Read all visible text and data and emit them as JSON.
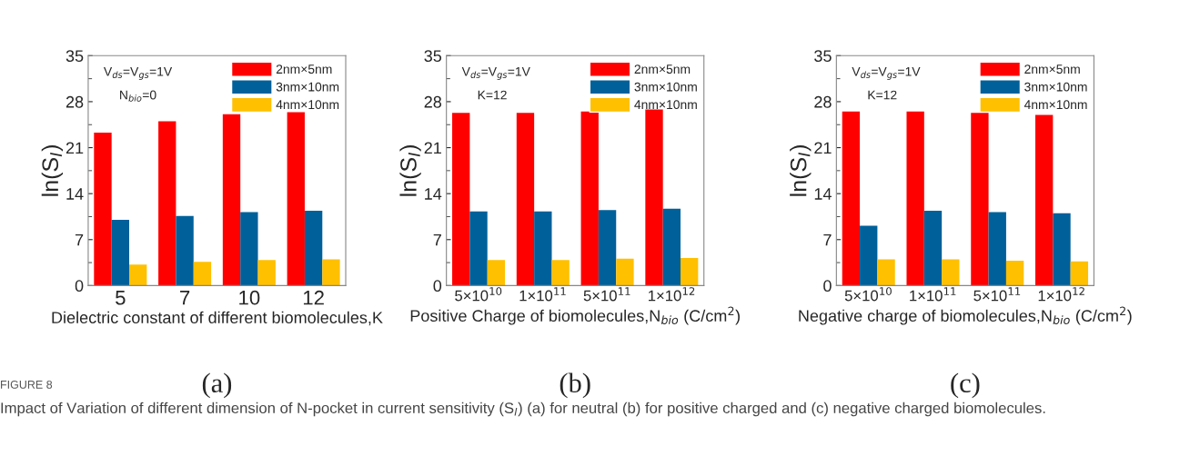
{
  "chart_data": [
    {
      "type": "bar",
      "categories": [
        "5",
        "7",
        "10",
        "12"
      ],
      "xlabel": "Dielectric constant of different biomolecules,K",
      "ylabel": "ln(S$_{I}$)",
      "ylim": [
        0,
        35
      ],
      "yticks": [
        0,
        7,
        14,
        21,
        28,
        35
      ],
      "legend": "top right",
      "grid": false,
      "series": [
        {
          "name": "2nm×5nm",
          "color": "#ff0000",
          "values": [
            23.3,
            25.0,
            26.1,
            26.4
          ]
        },
        {
          "name": "3nm×10nm",
          "color": "#00609a",
          "values": [
            10.0,
            10.6,
            11.2,
            11.4
          ]
        },
        {
          "name": "4nm×10nm",
          "color": "#ffc000",
          "values": [
            3.2,
            3.6,
            3.9,
            4.0
          ]
        }
      ],
      "annotations": [
        "V$_{ds}$=V$_{gs}$=1V",
        "N$_{bio}$=0",
        "(a)",
        "FIGURE 8",
        "Impact of Variation of different dimension of N-pocket in current sensitivity (S$_{I}$) (a) for neutral (b) for positive charged and (c) negative charged biomolecules."
      ]
    },
    {
      "type": "bar",
      "categories": [
        "5×10$^{10}$",
        "1×10$^{11}$",
        "5×10$^{11}$",
        "1×10$^{12}$"
      ],
      "xlabel": "Positive Charge of biomolecules,N$_{bio}$ (C/cm$^{2}$)",
      "ylabel": "ln(S$_{I}$)",
      "ylim": [
        0,
        35
      ],
      "yticks": [
        0,
        7,
        14,
        21,
        28,
        35
      ],
      "legend": "top right",
      "grid": false,
      "series": [
        {
          "name": "2nm×5nm",
          "color": "#ff0000",
          "values": [
            26.3,
            26.3,
            26.5,
            26.8
          ]
        },
        {
          "name": "3nm×10nm",
          "color": "#00609a",
          "values": [
            11.3,
            11.3,
            11.5,
            11.7
          ]
        },
        {
          "name": "4nm×10nm",
          "color": "#ffc000",
          "values": [
            3.9,
            3.9,
            4.1,
            4.2
          ]
        }
      ],
      "annotations": [
        "V$_{ds}$=V$_{gs}$=1V",
        "K=12",
        "(b)"
      ]
    },
    {
      "type": "bar",
      "categories": [
        "5×10$^{10}$",
        "1×10$^{11}$",
        "5×10$^{11}$",
        "1×10$^{12}$"
      ],
      "xlabel": "Negative charge of biomolecules,N$_{bio}$ (C/cm$^{2}$)",
      "ylabel": "ln(S$_{I}$)",
      "ylim": [
        0,
        35
      ],
      "yticks": [
        0,
        7,
        14,
        21,
        28,
        35
      ],
      "legend": "top right",
      "grid": false,
      "series": [
        {
          "name": "2nm×5nm",
          "color": "#ff0000",
          "values": [
            26.5,
            26.5,
            26.3,
            26.0
          ]
        },
        {
          "name": "3nm×10nm",
          "color": "#00609a",
          "values": [
            9.1,
            11.4,
            11.2,
            11.0
          ]
        },
        {
          "name": "4nm×10nm",
          "color": "#ffc000",
          "values": [
            4.0,
            4.0,
            3.8,
            3.7
          ]
        }
      ],
      "annotations": [
        "V$_{ds}$=V$_{gs}$=1V",
        "K=12",
        "(c)"
      ]
    }
  ]
}
